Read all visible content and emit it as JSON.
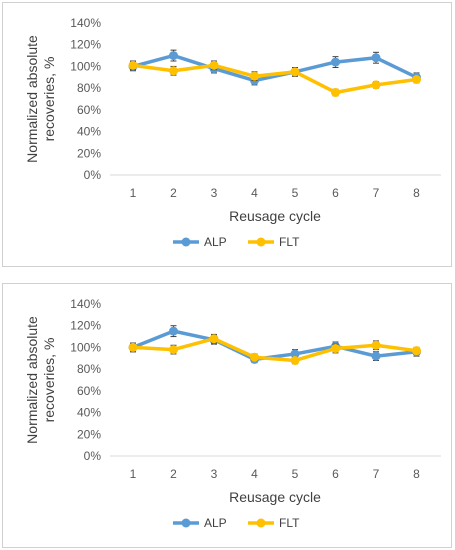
{
  "chart_data": [
    {
      "type": "line",
      "categories": [
        "1",
        "2",
        "3",
        "4",
        "5",
        "6",
        "7",
        "8"
      ],
      "xlabel": "Reusage cycle",
      "ylabel": "Normalized absolute recoveries, %",
      "ylim": [
        0,
        140
      ],
      "yticks": [
        "0%",
        "20%",
        "40%",
        "60%",
        "80%",
        "100%",
        "120%",
        "140%"
      ],
      "grid": false,
      "legend_position": "bottom",
      "series": [
        {
          "name": "ALP",
          "color": "#5B9BD5",
          "values": [
            100,
            110,
            98,
            87,
            95,
            104,
            108,
            90
          ],
          "error": [
            4,
            5,
            4,
            4,
            4,
            5,
            5,
            4
          ]
        },
        {
          "name": "FLT",
          "color": "#FFC000",
          "values": [
            101,
            96,
            101,
            91,
            95,
            76,
            83,
            88
          ],
          "error": [
            4,
            4,
            4,
            4,
            4,
            3,
            3,
            3
          ]
        }
      ]
    },
    {
      "type": "line",
      "categories": [
        "1",
        "2",
        "3",
        "4",
        "5",
        "6",
        "7",
        "8"
      ],
      "xlabel": "Reusage cycle",
      "ylabel": "Normalized absolute recoveries, %",
      "ylim": [
        0,
        140
      ],
      "yticks": [
        "0%",
        "20%",
        "40%",
        "60%",
        "80%",
        "100%",
        "120%",
        "140%"
      ],
      "grid": false,
      "legend_position": "bottom",
      "series": [
        {
          "name": "ALP",
          "color": "#5B9BD5",
          "values": [
            100,
            115,
            107,
            89,
            94,
            101,
            92,
            96
          ],
          "error": [
            4,
            5,
            4,
            3,
            4,
            4,
            4,
            4
          ]
        },
        {
          "name": "FLT",
          "color": "#FFC000",
          "values": [
            100,
            98,
            108,
            91,
            88,
            99,
            102,
            97
          ],
          "error": [
            4,
            4,
            4,
            3,
            3,
            4,
            4,
            3
          ]
        }
      ]
    }
  ]
}
